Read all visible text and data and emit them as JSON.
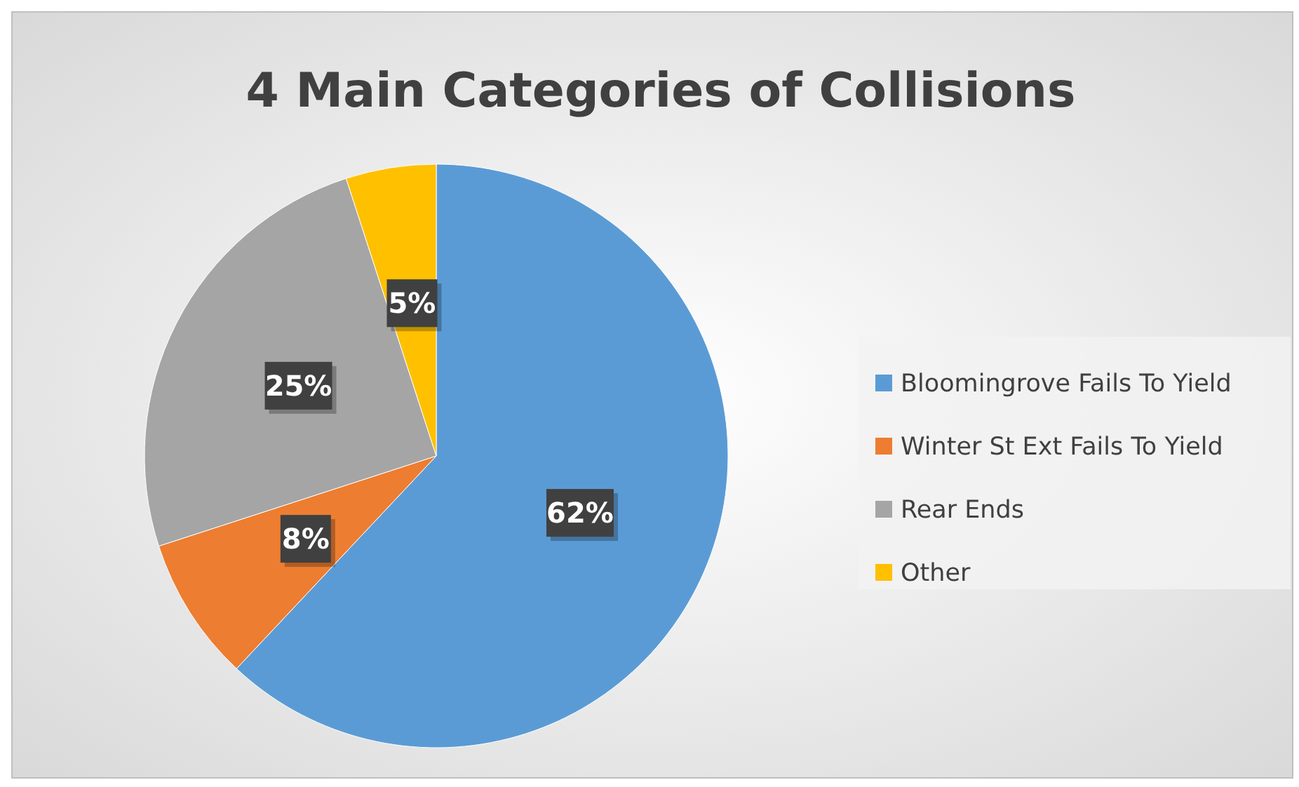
{
  "chart_data": {
    "type": "pie",
    "title": "4 Main Categories of Collisions",
    "categories": [
      "Bloomingrove Fails To Yield",
      "Winter St Ext Fails To Yield",
      "Rear Ends",
      "Other"
    ],
    "values": [
      62,
      8,
      25,
      5
    ],
    "colors": [
      "#5b9bd5",
      "#ed7d31",
      "#a5a5a5",
      "#ffc000"
    ],
    "value_labels": [
      "62%",
      "8%",
      "25%",
      "5%"
    ],
    "legend": "right"
  }
}
